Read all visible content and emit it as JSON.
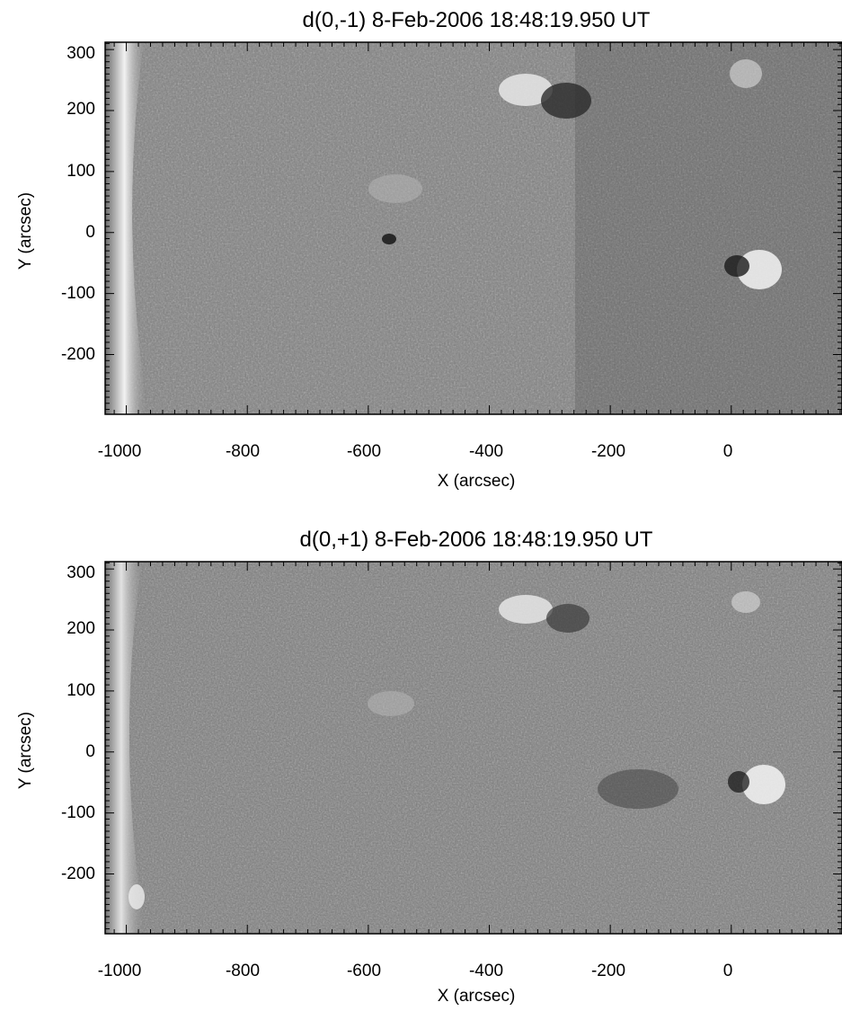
{
  "panels": [
    {
      "title": "d(0,-1)  8-Feb-2006 18:48:19.950 UT",
      "xlabel": "X (arcsec)",
      "ylabel": "Y (arcsec)",
      "xticks": [
        "-1000",
        "-800",
        "-600",
        "-400",
        "-200",
        "0"
      ],
      "yticks": [
        "300",
        "200",
        "100",
        "0",
        "-100",
        "-200"
      ]
    },
    {
      "title": "d(0,+1)  8-Feb-2006 18:48:19.950 UT",
      "xlabel": "X (arcsec)",
      "ylabel": "Y (arcsec)",
      "xticks": [
        "-1000",
        "-800",
        "-600",
        "-400",
        "-200",
        "0"
      ],
      "yticks": [
        "300",
        "200",
        "100",
        "0",
        "-100",
        "-200"
      ]
    }
  ],
  "axes": {
    "xrange": [
      -1035,
      183
    ],
    "yrange": [
      -298,
      312
    ],
    "xtick_values": [
      -1000,
      -800,
      -600,
      -400,
      -200,
      0
    ],
    "ytick_values": [
      300,
      200,
      100,
      0,
      -100,
      -200
    ]
  },
  "colors": {
    "background": "#ffffff",
    "image_gray": "#7f7f7f",
    "limb": "#ececec"
  }
}
